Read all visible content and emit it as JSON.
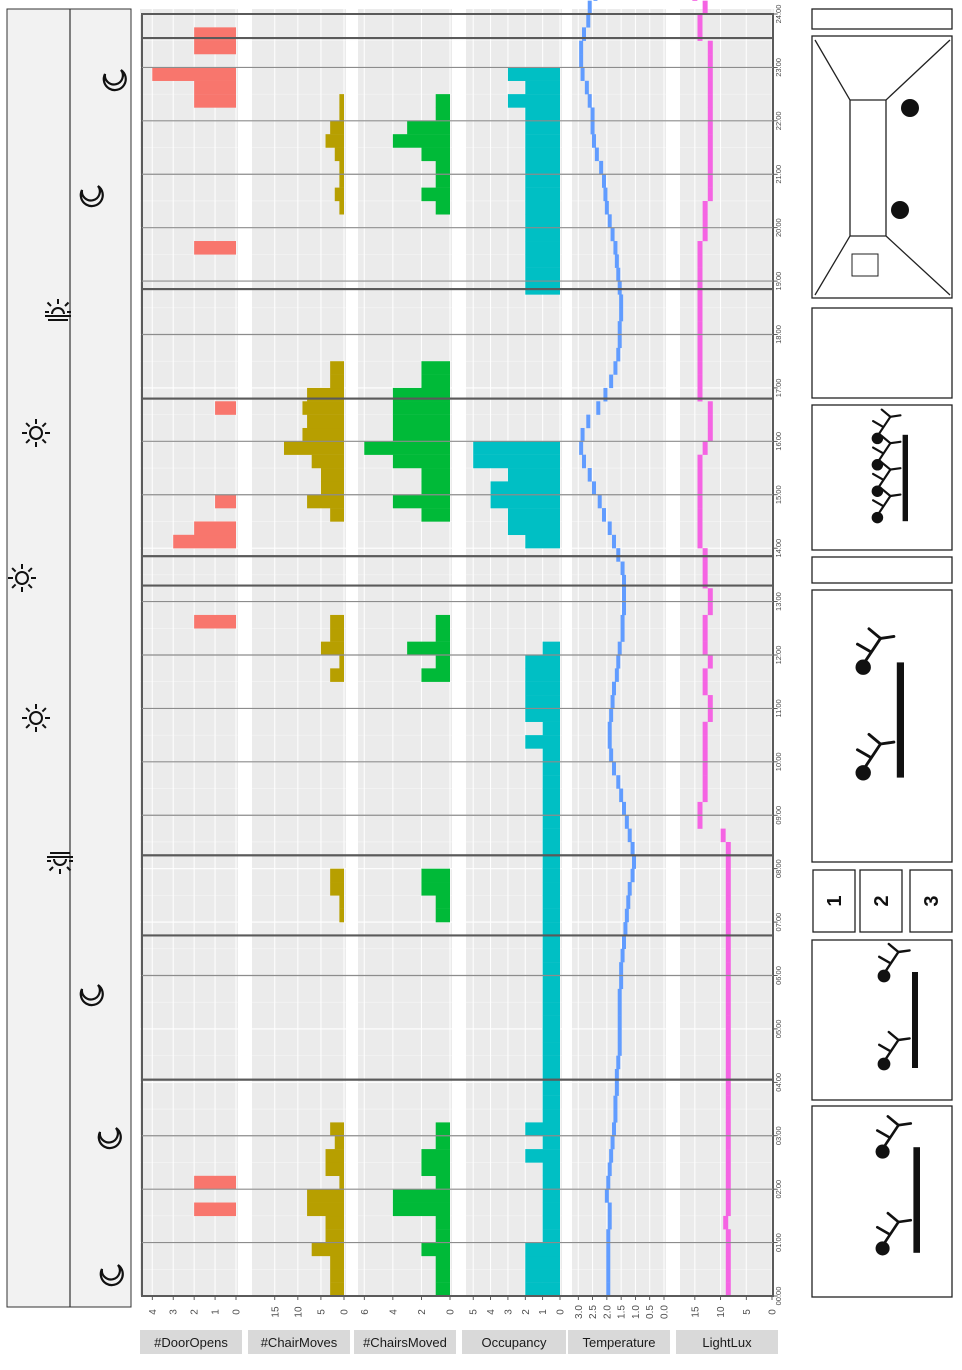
{
  "chart_data": {
    "type": "bar",
    "time_ticks": [
      "00:00",
      "01:00",
      "02:00",
      "03:00",
      "04:00",
      "05:00",
      "06:00",
      "07:00",
      "08:00",
      "09:00",
      "10:00",
      "11:00",
      "12:00",
      "13:00",
      "14:00",
      "15:00",
      "16:00",
      "17:00",
      "18:00",
      "19:00",
      "20:00",
      "21:00",
      "22:00",
      "23:00",
      "24:00"
    ],
    "bin_minutes": 15,
    "panels": [
      {
        "name": "#DoorOpens",
        "color": "#f8766d",
        "type": "bar",
        "ticks": [
          4,
          3,
          2,
          1,
          0
        ],
        "range": [
          0,
          4.3
        ],
        "values": [
          0,
          0,
          0,
          0,
          0,
          0,
          2,
          0,
          2,
          0,
          0,
          0,
          0,
          0,
          0,
          0,
          0,
          0,
          0,
          0,
          0,
          0,
          0,
          0,
          0,
          0,
          0,
          0,
          0,
          0,
          0,
          0,
          0,
          0,
          0,
          0,
          0,
          0,
          0,
          0,
          0,
          0,
          0,
          0,
          0,
          0,
          0,
          0,
          0,
          0,
          2,
          0,
          0,
          0,
          0,
          0,
          3,
          2,
          0,
          1,
          0,
          0,
          0,
          0,
          0,
          0,
          1,
          0,
          0,
          0,
          0,
          0,
          0,
          0,
          0,
          0,
          0,
          0,
          2,
          0,
          0,
          0,
          0,
          0,
          0,
          0,
          0,
          0,
          0,
          2,
          2,
          4,
          0,
          2,
          2,
          0,
          0,
          0,
          0,
          0
        ]
      },
      {
        "name": "#ChairMoves",
        "color": "#b79f00",
        "type": "bar",
        "ticks": [
          15,
          10,
          5,
          0
        ],
        "range": [
          0,
          19.5
        ],
        "values": [
          3,
          3,
          3,
          7,
          4,
          4,
          8,
          8,
          1,
          4,
          4,
          2,
          3,
          0,
          0,
          0,
          0,
          0,
          0,
          0,
          0,
          0,
          0,
          0,
          0,
          0,
          0,
          0,
          1,
          1,
          3,
          3,
          0,
          0,
          0,
          0,
          0,
          0,
          0,
          0,
          0,
          0,
          0,
          0,
          0,
          0,
          3,
          1,
          5,
          3,
          3,
          0,
          0,
          0,
          0,
          0,
          0,
          0,
          3,
          8,
          5,
          5,
          7,
          13,
          9,
          8,
          9,
          8,
          3,
          3,
          0,
          0,
          0,
          0,
          0,
          0,
          0,
          0,
          0,
          0,
          0,
          1,
          2,
          1,
          1,
          2,
          4,
          3,
          1,
          1,
          0,
          0,
          0,
          0,
          0,
          0,
          0,
          0,
          0,
          0
        ]
      },
      {
        "name": "#ChairsMoved",
        "color": "#00ba38",
        "type": "bar",
        "ticks": [
          6,
          4,
          2,
          0
        ],
        "range": [
          0,
          6.3
        ],
        "values": [
          1,
          1,
          1,
          2,
          1,
          1,
          4,
          4,
          1,
          2,
          2,
          1,
          1,
          0,
          0,
          0,
          0,
          0,
          0,
          0,
          0,
          0,
          0,
          0,
          0,
          0,
          0,
          0,
          1,
          1,
          2,
          2,
          0,
          0,
          0,
          0,
          0,
          0,
          0,
          0,
          0,
          0,
          0,
          0,
          0,
          0,
          2,
          1,
          3,
          1,
          1,
          0,
          0,
          0,
          0,
          0,
          0,
          0,
          2,
          4,
          2,
          2,
          4,
          6,
          4,
          4,
          4,
          4,
          2,
          2,
          0,
          0,
          0,
          0,
          0,
          0,
          0,
          0,
          0,
          0,
          0,
          1,
          2,
          1,
          1,
          2,
          4,
          3,
          1,
          1,
          0,
          0,
          0,
          0,
          0,
          0,
          0,
          0,
          0,
          0
        ]
      },
      {
        "name": "Occupancy",
        "color": "#00bfc4",
        "type": "bar",
        "ticks": [
          5,
          4,
          3,
          2,
          1,
          0
        ],
        "range": [
          0,
          5.3
        ],
        "values": [
          2,
          2,
          2,
          2,
          1,
          1,
          1,
          1,
          1,
          1,
          2,
          1,
          2,
          1,
          1,
          1,
          1,
          1,
          1,
          1,
          1,
          1,
          1,
          1,
          1,
          1,
          1,
          1,
          1,
          1,
          1,
          1,
          1,
          1,
          1,
          1,
          1,
          1,
          1,
          1,
          1,
          2,
          1,
          2,
          2,
          2,
          2,
          2,
          1,
          0,
          0,
          0,
          0,
          0,
          0,
          0,
          2,
          3,
          3,
          4,
          4,
          3,
          5,
          5,
          0,
          0,
          0,
          0,
          0,
          0,
          0,
          0,
          0,
          0,
          0,
          2,
          2,
          2,
          2,
          2,
          2,
          2,
          2,
          2,
          2,
          2,
          2,
          2,
          2,
          3,
          2,
          3,
          0,
          0,
          0,
          0,
          0,
          0,
          0,
          0
        ]
      },
      {
        "name": "Temperature",
        "color": "#619cff",
        "type": "line",
        "ticks": [
          3.0,
          2.5,
          2.0,
          1.5,
          1.0,
          0.5,
          0.0
        ],
        "tick_labels": [
          "3.0",
          "2.5",
          "2.0",
          "1.5",
          "1.0",
          "0.5",
          "0.0"
        ],
        "range": [
          0,
          3.15
        ],
        "values": [
          1.95,
          1.95,
          1.95,
          1.95,
          1.95,
          1.9,
          1.9,
          2.0,
          1.95,
          1.9,
          1.85,
          1.8,
          1.75,
          1.7,
          1.7,
          1.65,
          1.65,
          1.6,
          1.55,
          1.55,
          1.55,
          1.55,
          1.55,
          1.5,
          1.5,
          1.45,
          1.4,
          1.35,
          1.3,
          1.25,
          1.2,
          1.1,
          1.05,
          1.1,
          1.2,
          1.3,
          1.4,
          1.5,
          1.6,
          1.75,
          1.85,
          1.9,
          1.9,
          1.85,
          1.8,
          1.75,
          1.65,
          1.6,
          1.55,
          1.45,
          1.45,
          1.4,
          1.4,
          1.4,
          1.45,
          1.6,
          1.75,
          1.9,
          2.1,
          2.25,
          2.45,
          2.6,
          2.8,
          2.9,
          2.85,
          2.65,
          2.3,
          2.05,
          1.85,
          1.7,
          1.6,
          1.55,
          1.55,
          1.5,
          1.5,
          1.55,
          1.6,
          1.65,
          1.7,
          1.8,
          1.9,
          2.0,
          2.05,
          2.1,
          2.2,
          2.35,
          2.45,
          2.5,
          2.5,
          2.6,
          2.7,
          2.85,
          2.9,
          2.9,
          2.8,
          2.65,
          2.6,
          2.4,
          2.3,
          2.2
        ]
      },
      {
        "name": "LightLux",
        "color": "#f564e3",
        "type": "line",
        "ticks": [
          15,
          10,
          5,
          0
        ],
        "range": [
          0,
          17.5
        ],
        "values": [
          8.5,
          8.5,
          8.5,
          8.5,
          8.5,
          9,
          8.5,
          8.5,
          8.5,
          8.5,
          8.5,
          8.5,
          8.5,
          8.5,
          8.5,
          8.5,
          8.5,
          8.5,
          8.5,
          8.5,
          8.5,
          8.5,
          8.5,
          8.5,
          8.5,
          8.5,
          8.5,
          8.5,
          8.5,
          8.5,
          8.5,
          8.5,
          8.5,
          8.5,
          9.5,
          14,
          14,
          13,
          13,
          13,
          13,
          13,
          13,
          12,
          12,
          13,
          13,
          12,
          13,
          13,
          13,
          12,
          12,
          13,
          13,
          13,
          14,
          14,
          14,
          14,
          14,
          14,
          14,
          13,
          12,
          12,
          12,
          14,
          14,
          14,
          14,
          14,
          14,
          14,
          14,
          14,
          14,
          14,
          14,
          13,
          13,
          13,
          12,
          12,
          12,
          12,
          12,
          12,
          12,
          12,
          12,
          12,
          12,
          12,
          14,
          14,
          13,
          15,
          14,
          14
        ]
      }
    ]
  },
  "day_phases": {
    "icons": [
      "moon-icon",
      "moon-icon",
      "moon-icon",
      "sunrise-icon",
      "sun-icon",
      "sun-icon",
      "sun-icon",
      "sunset-icon",
      "moon-icon",
      "moon-icon"
    ]
  },
  "segment_numbers": [
    "1",
    "2",
    "3"
  ]
}
